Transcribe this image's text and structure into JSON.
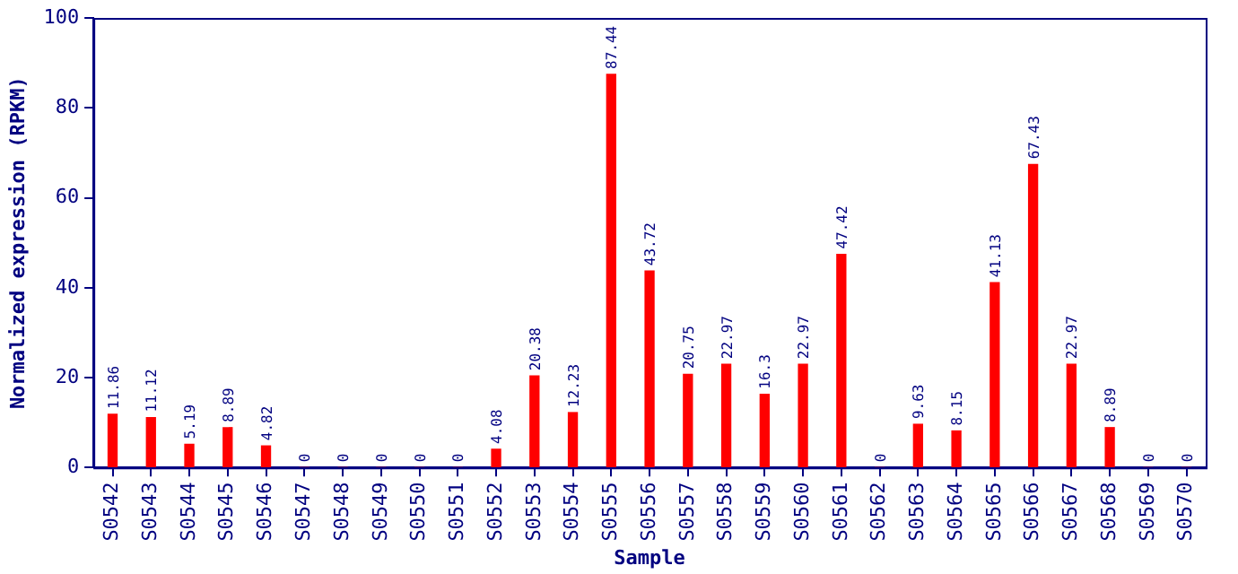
{
  "chart_data": {
    "type": "bar",
    "xlabel": "Sample",
    "ylabel": "Normalized expression (RPKM)",
    "categories": [
      "S0542",
      "S0543",
      "S0544",
      "S0545",
      "S0546",
      "S0547",
      "S0548",
      "S0549",
      "S0550",
      "S0551",
      "S0552",
      "S0553",
      "S0554",
      "S0555",
      "S0556",
      "S0557",
      "S0558",
      "S0559",
      "S0560",
      "S0561",
      "S0562",
      "S0563",
      "S0564",
      "S0565",
      "S0566",
      "S0567",
      "S0568",
      "S0569",
      "S0570"
    ],
    "values": [
      11.86,
      11.12,
      5.19,
      8.89,
      4.82,
      0,
      0,
      0,
      0,
      0,
      4.08,
      20.38,
      12.23,
      87.44,
      43.72,
      20.75,
      22.97,
      16.3,
      22.97,
      47.42,
      0,
      9.63,
      8.15,
      41.13,
      67.43,
      22.97,
      8.89,
      0,
      0
    ],
    "color": "#ff0000",
    "ylim": [
      0,
      100
    ],
    "yticks": [
      0,
      20,
      40,
      60,
      80,
      100
    ],
    "grid": false,
    "legend": false,
    "data_labels": true
  }
}
